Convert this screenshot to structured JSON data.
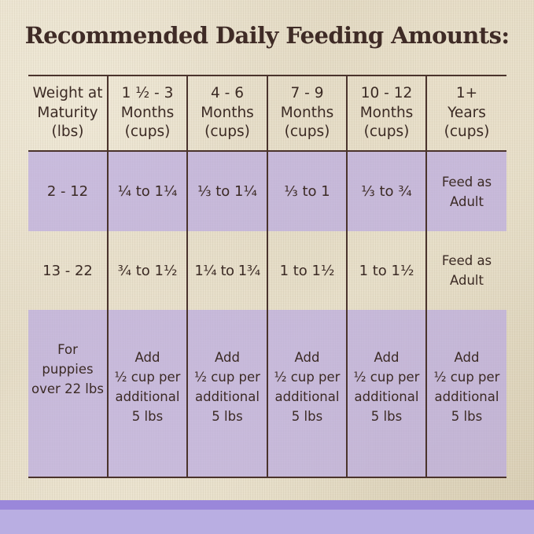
{
  "title": "Recommended Daily Feeding Amounts:",
  "table": {
    "headers": [
      "Weight at\nMaturity\n(lbs)",
      "1 ½ - 3\nMonths\n(cups)",
      "4 - 6\nMonths\n(cups)",
      "7 - 9\nMonths\n(cups)",
      "10 - 12\nMonths\n(cups)",
      "1+\nYears\n(cups)"
    ],
    "rows": [
      [
        "2 - 12",
        "¼ to 1¼",
        "⅓ to 1¼",
        "⅓ to 1",
        "⅓ to ¾",
        "Feed as\nAdult"
      ],
      [
        "13 - 22",
        "¾ to 1½",
        "1¼ to 1¾",
        "1 to 1½",
        "1 to 1½",
        "Feed as\nAdult"
      ],
      [
        "For\npuppies\nover 22 lbs",
        "Add\n½ cup per\nadditional\n5 lbs",
        "Add\n½ cup per\nadditional\n5 lbs",
        "Add\n½ cup per\nadditional\n5 lbs",
        "Add\n½ cup per\nadditional\n5 lbs",
        "Add\n½ cup per\nadditional\n5 lbs"
      ]
    ]
  },
  "colors": {
    "text": "#3b2a24",
    "grid_lines": "#4a332c",
    "row_highlight": "#b8a8e1",
    "bottom_stripe": "#b9aee2",
    "background": "#e3dbc5"
  }
}
